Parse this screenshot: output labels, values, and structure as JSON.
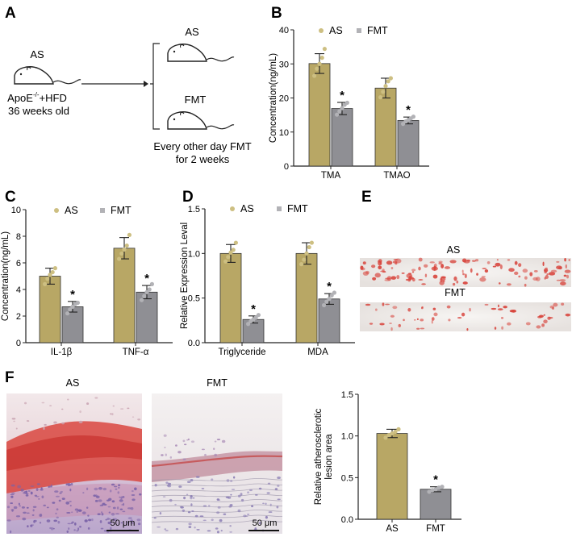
{
  "colors": {
    "as": "#b8a765",
    "fmt": "#8f8f94",
    "as_dot": "#cdbf82",
    "fmt_dot": "#b2b2b6",
    "stain": "#d8453d",
    "axis": "#222222"
  },
  "panels": {
    "A": "A",
    "B": "B",
    "C": "C",
    "D": "D",
    "E": "E",
    "F": "F"
  },
  "schematic": {
    "left_group": "AS",
    "left_model_1": "ApoE",
    "left_model_sup": "-/-",
    "left_model_2": "+HFD",
    "left_age": "36 weeks old",
    "top_group": "AS",
    "bottom_group": "FMT",
    "note_line1": "Every other day FMT",
    "note_line2": "for 2 weeks",
    "icon": "mouse-icon"
  },
  "legend": {
    "as": "AS",
    "fmt": "FMT"
  },
  "significance": "*",
  "chart_data": [
    {
      "panel": "B",
      "type": "bar",
      "ylabel": "Concentration(ng/mL)",
      "ylim": [
        0,
        40
      ],
      "yticks": [
        "0",
        "10",
        "20",
        "30",
        "40"
      ],
      "categories": [
        "TMA",
        "TMAO"
      ],
      "series": [
        {
          "name": "AS",
          "values": [
            30.1,
            22.9
          ],
          "error": [
            2.9,
            2.9
          ],
          "points": [
            [
              26.5,
              28.6,
              30.0,
              31.8,
              34.4
            ],
            [
              20.2,
              21.8,
              23.5,
              24.9,
              25.8
            ]
          ]
        },
        {
          "name": "FMT",
          "values": [
            16.9,
            13.4
          ],
          "error": [
            1.8,
            1.0
          ],
          "points": [
            [
              15.1,
              16.1,
              17.0,
              18.0,
              18.6
            ],
            [
              12.4,
              13.1,
              13.5,
              14.0,
              14.5
            ]
          ]
        }
      ],
      "significant": [
        "TMA",
        "TMAO"
      ]
    },
    {
      "panel": "C",
      "type": "bar",
      "ylabel": "Concentration(ng/mL)",
      "ylim": [
        0,
        10
      ],
      "yticks": [
        "0",
        "2",
        "4",
        "6",
        "8",
        "10"
      ],
      "categories": [
        "IL-1β",
        "TNF-α"
      ],
      "series": [
        {
          "name": "AS",
          "values": [
            5.0,
            7.1
          ],
          "error": [
            0.6,
            0.8
          ],
          "points": [
            [
              4.4,
              4.8,
              5.1,
              5.3,
              5.6
            ],
            [
              6.3,
              6.7,
              7.0,
              7.3,
              8.1
            ]
          ]
        },
        {
          "name": "FMT",
          "values": [
            2.7,
            3.8
          ],
          "error": [
            0.4,
            0.5
          ],
          "points": [
            [
              2.2,
              2.5,
              2.7,
              2.9,
              3.0
            ],
            [
              3.2,
              3.5,
              3.8,
              4.0,
              4.4
            ]
          ]
        }
      ],
      "significant": [
        "IL-1β",
        "TNF-α"
      ]
    },
    {
      "panel": "D",
      "type": "bar",
      "ylabel": "Relative Expression Leval",
      "ylim": [
        0,
        1.5
      ],
      "yticks": [
        "0.0",
        "0.5",
        "1.0",
        "1.5"
      ],
      "categories": [
        "Triglyceride",
        "MDA"
      ],
      "series": [
        {
          "name": "AS",
          "values": [
            1.0,
            1.0
          ],
          "error": [
            0.1,
            0.12
          ],
          "points": [
            [
              0.91,
              0.96,
              1.01,
              1.04,
              1.12
            ],
            [
              0.88,
              0.93,
              1.0,
              1.07,
              1.12
            ]
          ]
        },
        {
          "name": "FMT",
          "values": [
            0.26,
            0.49
          ],
          "error": [
            0.04,
            0.06
          ],
          "points": [
            [
              0.21,
              0.24,
              0.26,
              0.28,
              0.31
            ],
            [
              0.42,
              0.46,
              0.49,
              0.53,
              0.56
            ]
          ]
        }
      ],
      "significant": [
        "Triglyceride",
        "MDA"
      ]
    },
    {
      "panel": "F",
      "type": "bar",
      "ylabel_line1": "Relative atherosclerotic",
      "ylabel_line2": "lesion area",
      "ylim": [
        0,
        1.5
      ],
      "yticks": [
        "0.0",
        "0.5",
        "1.0",
        "1.5"
      ],
      "categories": [
        "AS",
        "FMT"
      ],
      "values": [
        1.03,
        0.36
      ],
      "error": [
        0.05,
        0.03
      ],
      "points": [
        [
          0.98,
          1.01,
          1.03,
          1.05,
          1.08
        ],
        [
          0.33,
          0.35,
          0.36,
          0.38,
          0.39
        ]
      ],
      "significant": [
        "FMT"
      ]
    }
  ],
  "aorta": {
    "top_label": "AS",
    "bottom_label": "FMT"
  },
  "histology": {
    "left_label": "AS",
    "right_label": "FMT",
    "scale_left": "50 μm",
    "scale_right": "50 μm"
  }
}
